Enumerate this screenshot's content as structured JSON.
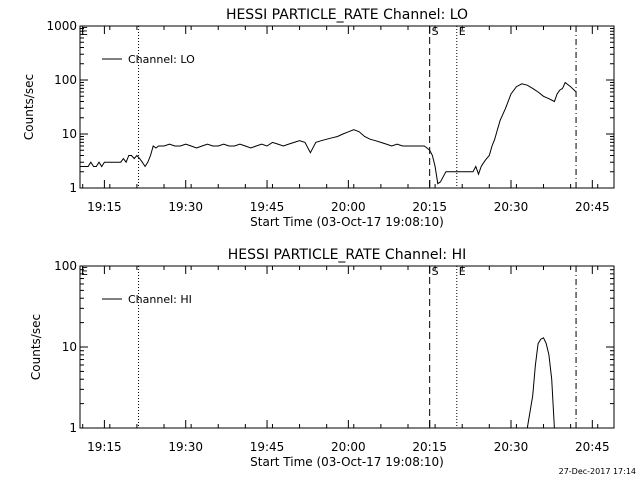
{
  "footer": {
    "timestamp": "27-Dec-2017 17:14"
  },
  "chart_data": [
    {
      "type": "line",
      "title": "HESSI PARTICLE_RATE Channel: LO",
      "xlabel": "Start Time (03-Oct-17 19:08:10)",
      "ylabel": "Counts/sec",
      "x_unit": "minutes",
      "x_tick_labels": [
        "19:15",
        "19:30",
        "19:45",
        "20:00",
        "20:15",
        "20:30",
        "20:45"
      ],
      "x_ticks": [
        1155,
        1170,
        1185,
        1200,
        1215,
        1230,
        1245
      ],
      "xlim": [
        1150.5,
        1249
      ],
      "y_scale": "log",
      "y_tick_labels": [
        "1",
        "10",
        "100",
        "1000"
      ],
      "y_ticks": [
        1,
        10,
        100,
        1000
      ],
      "ylim": [
        1,
        1000
      ],
      "legend": {
        "placement": "top-left",
        "entries": [
          "Channel: LO"
        ]
      },
      "series": [
        {
          "name": "Channel: LO",
          "x": [
            1150.5,
            1152,
            1152.5,
            1153,
            1153.5,
            1154,
            1154.5,
            1155,
            1155.5,
            1156,
            1156.5,
            1157,
            1157.5,
            1158,
            1158.5,
            1159,
            1159.5,
            1160,
            1160.5,
            1161,
            1161.5,
            1162,
            1162.5,
            1163,
            1163.5,
            1164,
            1164.5,
            1165,
            1165.5,
            1166,
            1167,
            1168,
            1169,
            1170,
            1171,
            1172,
            1173,
            1174,
            1175,
            1176,
            1177,
            1178,
            1179,
            1180,
            1181,
            1182,
            1183,
            1184,
            1185,
            1186,
            1187,
            1188,
            1189,
            1190,
            1191,
            1192,
            1193,
            1194,
            1195,
            1196,
            1197,
            1198,
            1199,
            1200,
            1201,
            1202,
            1203,
            1204,
            1205,
            1206,
            1207,
            1208,
            1209,
            1210,
            1211,
            1212,
            1213,
            1214,
            1214.5,
            1215,
            1215.5,
            1216,
            1216.5,
            1217,
            1218,
            1220,
            1221,
            1222,
            1223,
            1223.5,
            1224,
            1224.5,
            1225,
            1225.5,
            1226,
            1226.5,
            1227,
            1227.5,
            1228,
            1229,
            1230,
            1231,
            1232,
            1233,
            1234,
            1235,
            1236,
            1237,
            1238,
            1238.5,
            1239,
            1239.5,
            1240,
            1241,
            1242
          ],
          "y": [
            2.5,
            2.5,
            3,
            2.5,
            2.5,
            3,
            2.5,
            3,
            3,
            3,
            3,
            3,
            3,
            3,
            3.5,
            3,
            4,
            4,
            3.5,
            4,
            3.5,
            3,
            2.5,
            3,
            4,
            6,
            5.5,
            6,
            6,
            6,
            6.5,
            6,
            6,
            6.5,
            6,
            5.5,
            6,
            6.5,
            6,
            6,
            6.5,
            6,
            6,
            6.5,
            6,
            5.5,
            6,
            6.5,
            6,
            7,
            6.5,
            6,
            6.5,
            7,
            7.5,
            7,
            4.5,
            7,
            7.5,
            8,
            8.5,
            9,
            10,
            11,
            12,
            11,
            9,
            8,
            7.5,
            7,
            6.5,
            6,
            6.5,
            6,
            6,
            6,
            6,
            6,
            5.5,
            5,
            4,
            2.5,
            1.2,
            1.3,
            2,
            2,
            2,
            2,
            2,
            2.5,
            1.8,
            2.5,
            3,
            3.5,
            4,
            6,
            8,
            12,
            18,
            30,
            55,
            75,
            85,
            80,
            70,
            60,
            50,
            45,
            40,
            55,
            65,
            70,
            90,
            75,
            60
          ]
        }
      ],
      "markers": [
        {
          "x": 1161.3,
          "style": "dotted",
          "label": ""
        },
        {
          "x": 1215,
          "style": "dashed",
          "label": "S"
        },
        {
          "x": 1220,
          "style": "dotted",
          "label": "E"
        },
        {
          "x": 1242,
          "style": "dashdot",
          "label": ""
        }
      ],
      "corner_label": "E"
    },
    {
      "type": "line",
      "title": "HESSI PARTICLE_RATE Channel: HI",
      "xlabel": "Start Time (03-Oct-17 19:08:10)",
      "ylabel": "Counts/sec",
      "x_unit": "minutes",
      "x_tick_labels": [
        "19:15",
        "19:30",
        "19:45",
        "20:00",
        "20:15",
        "20:30",
        "20:45"
      ],
      "x_ticks": [
        1155,
        1170,
        1185,
        1200,
        1215,
        1230,
        1245
      ],
      "xlim": [
        1150.5,
        1249
      ],
      "y_scale": "log",
      "y_tick_labels": [
        "1",
        "10",
        "100"
      ],
      "y_ticks": [
        1,
        10,
        100
      ],
      "ylim": [
        1,
        100
      ],
      "legend": {
        "placement": "top-left",
        "entries": [
          "Channel: HI"
        ]
      },
      "series": [
        {
          "name": "Channel: HI",
          "x": [
            1233,
            1234,
            1234.5,
            1235,
            1235.5,
            1236,
            1236.5,
            1237,
            1237.5,
            1238
          ],
          "y": [
            1,
            2.5,
            6,
            11,
            12.5,
            13,
            11,
            8,
            4,
            1
          ]
        }
      ],
      "markers": [
        {
          "x": 1161.3,
          "style": "dotted",
          "label": ""
        },
        {
          "x": 1215,
          "style": "dashed",
          "label": "S"
        },
        {
          "x": 1220,
          "style": "dotted",
          "label": "E"
        },
        {
          "x": 1242,
          "style": "dashdot",
          "label": ""
        }
      ],
      "corner_label": "E"
    }
  ]
}
